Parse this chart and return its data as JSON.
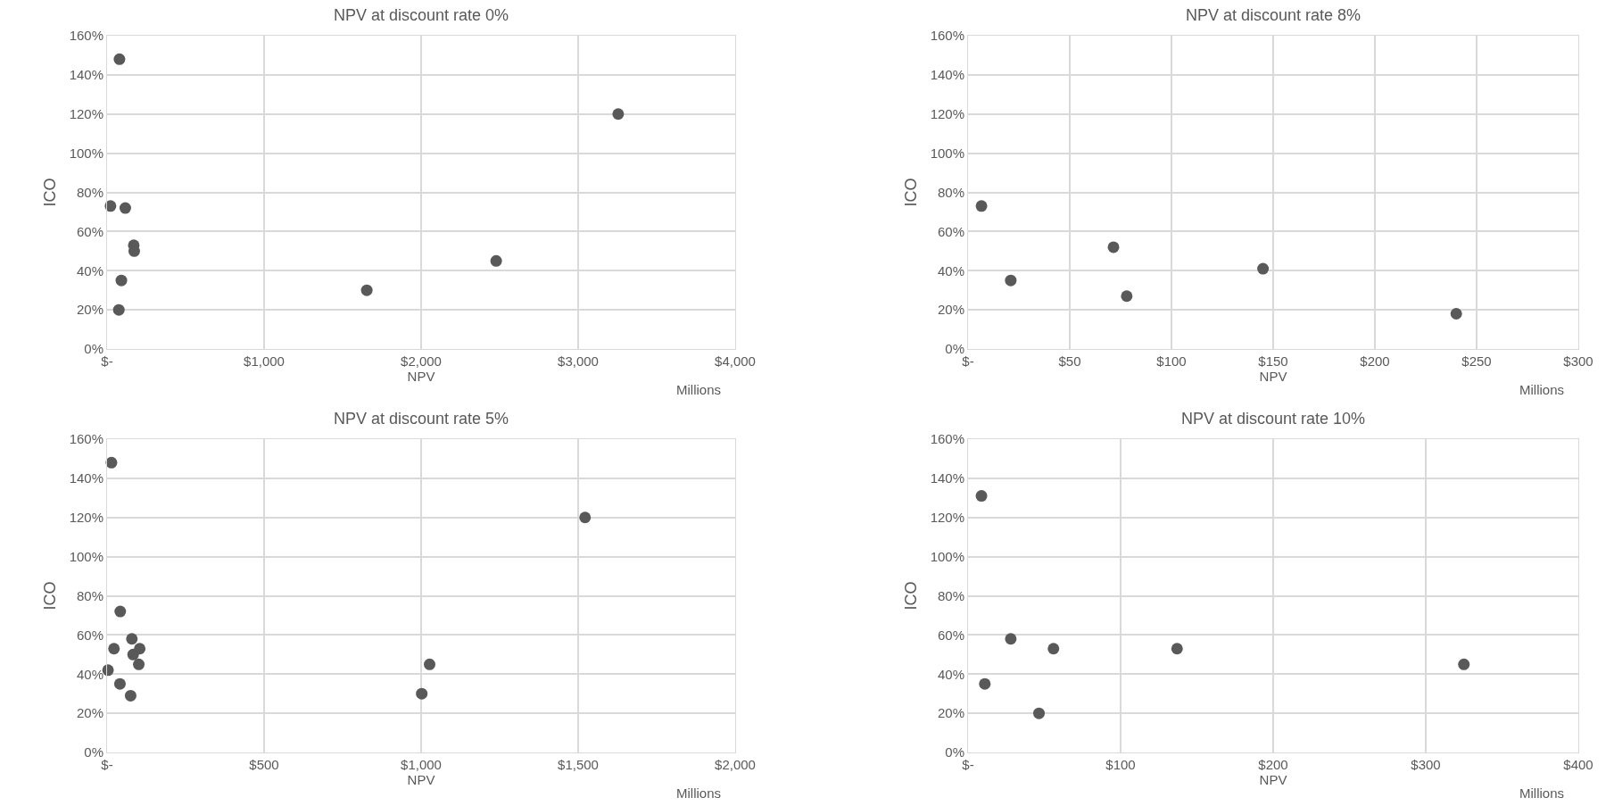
{
  "chart_data": [
    {
      "type": "scatter",
      "title": "NPV at discount rate 0%",
      "xlabel": "NPV",
      "ylabel": "ICO",
      "annotations": [
        "Millions"
      ],
      "color": "#595959",
      "marker": "circle",
      "grid": true,
      "x": [
        79,
        3255,
        22,
        116,
        170,
        173,
        91,
        75,
        1654,
        2478
      ],
      "values": [
        148,
        120,
        73,
        72,
        53,
        50,
        35,
        20,
        30,
        45
      ],
      "xlim": [
        0,
        4000
      ],
      "xticks": [
        {
          "value": 0,
          "label": "$-"
        },
        {
          "value": 1000,
          "label": "$1,000"
        },
        {
          "value": 2000,
          "label": "$2,000"
        },
        {
          "value": 3000,
          "label": "$3,000"
        },
        {
          "value": 4000,
          "label": "$4,000"
        }
      ],
      "ylim": [
        0,
        160
      ],
      "yticks": [
        {
          "value": 0,
          "label": "0%"
        },
        {
          "value": 20,
          "label": "20%"
        },
        {
          "value": 40,
          "label": "40%"
        },
        {
          "value": 60,
          "label": "60%"
        },
        {
          "value": 80,
          "label": "80%"
        },
        {
          "value": 100,
          "label": "100%"
        },
        {
          "value": 120,
          "label": "120%"
        },
        {
          "value": 140,
          "label": "140%"
        },
        {
          "value": 160,
          "label": "160%"
        }
      ]
    },
    {
      "type": "scatter",
      "title": "NPV at discount rate 8%",
      "xlabel": "NPV",
      "ylabel": "ICO",
      "annotations": [
        "Millions"
      ],
      "color": "#595959",
      "marker": "circle",
      "grid": true,
      "x": [
        6.6,
        21,
        71.5,
        78,
        145,
        240
      ],
      "values": [
        73,
        35,
        52,
        27,
        41,
        18
      ],
      "xlim": [
        0,
        300
      ],
      "xticks": [
        {
          "value": 0,
          "label": "$-"
        },
        {
          "value": 50,
          "label": "$50"
        },
        {
          "value": 100,
          "label": "$100"
        },
        {
          "value": 150,
          "label": "$150"
        },
        {
          "value": 200,
          "label": "$200"
        },
        {
          "value": 250,
          "label": "$250"
        },
        {
          "value": 300,
          "label": "$300"
        }
      ],
      "ylim": [
        0,
        160
      ],
      "yticks": [
        {
          "value": 0,
          "label": "0%"
        },
        {
          "value": 20,
          "label": "20%"
        },
        {
          "value": 40,
          "label": "40%"
        },
        {
          "value": 60,
          "label": "60%"
        },
        {
          "value": 80,
          "label": "80%"
        },
        {
          "value": 100,
          "label": "100%"
        },
        {
          "value": 120,
          "label": "120%"
        },
        {
          "value": 140,
          "label": "140%"
        },
        {
          "value": 160,
          "label": "160%"
        }
      ]
    },
    {
      "type": "scatter",
      "title": "NPV at discount rate 5%",
      "xlabel": "NPV",
      "ylabel": "ICO",
      "annotations": [
        "Millions"
      ],
      "color": "#595959",
      "marker": "circle",
      "grid": true,
      "x": [
        14,
        1522,
        42,
        79,
        22,
        83,
        104,
        101,
        3,
        41,
        75,
        1002,
        1027
      ],
      "values": [
        148,
        120,
        72,
        58,
        53,
        50,
        53,
        45,
        42,
        35,
        29,
        30,
        45
      ],
      "xlim": [
        0,
        2000
      ],
      "xticks": [
        {
          "value": 0,
          "label": "$-"
        },
        {
          "value": 500,
          "label": "$500"
        },
        {
          "value": 1000,
          "label": "$1,000"
        },
        {
          "value": 1500,
          "label": "$1,500"
        },
        {
          "value": 2000,
          "label": "$2,000"
        }
      ],
      "ylim": [
        0,
        160
      ],
      "yticks": [
        {
          "value": 0,
          "label": "0%"
        },
        {
          "value": 20,
          "label": "20%"
        },
        {
          "value": 40,
          "label": "40%"
        },
        {
          "value": 60,
          "label": "60%"
        },
        {
          "value": 80,
          "label": "80%"
        },
        {
          "value": 100,
          "label": "100%"
        },
        {
          "value": 120,
          "label": "120%"
        },
        {
          "value": 140,
          "label": "140%"
        },
        {
          "value": 160,
          "label": "160%"
        }
      ]
    },
    {
      "type": "scatter",
      "title": "NPV at discount rate 10%",
      "xlabel": "NPV",
      "ylabel": "ICO",
      "annotations": [
        "Millions"
      ],
      "color": "#595959",
      "marker": "circle",
      "grid": true,
      "x": [
        8.8,
        28,
        56,
        137,
        11,
        46.5,
        325
      ],
      "values": [
        131,
        58,
        53,
        53,
        35,
        20,
        45
      ],
      "xlim": [
        0,
        400
      ],
      "xticks": [
        {
          "value": 0,
          "label": "$-"
        },
        {
          "value": 100,
          "label": "$100"
        },
        {
          "value": 200,
          "label": "$200"
        },
        {
          "value": 300,
          "label": "$300"
        },
        {
          "value": 400,
          "label": "$400"
        }
      ],
      "ylim": [
        0,
        160
      ],
      "yticks": [
        {
          "value": 0,
          "label": "0%"
        },
        {
          "value": 20,
          "label": "20%"
        },
        {
          "value": 40,
          "label": "40%"
        },
        {
          "value": 60,
          "label": "60%"
        },
        {
          "value": 80,
          "label": "80%"
        },
        {
          "value": 100,
          "label": "100%"
        },
        {
          "value": 120,
          "label": "120%"
        },
        {
          "value": 140,
          "label": "140%"
        },
        {
          "value": 160,
          "label": "160%"
        }
      ]
    }
  ]
}
